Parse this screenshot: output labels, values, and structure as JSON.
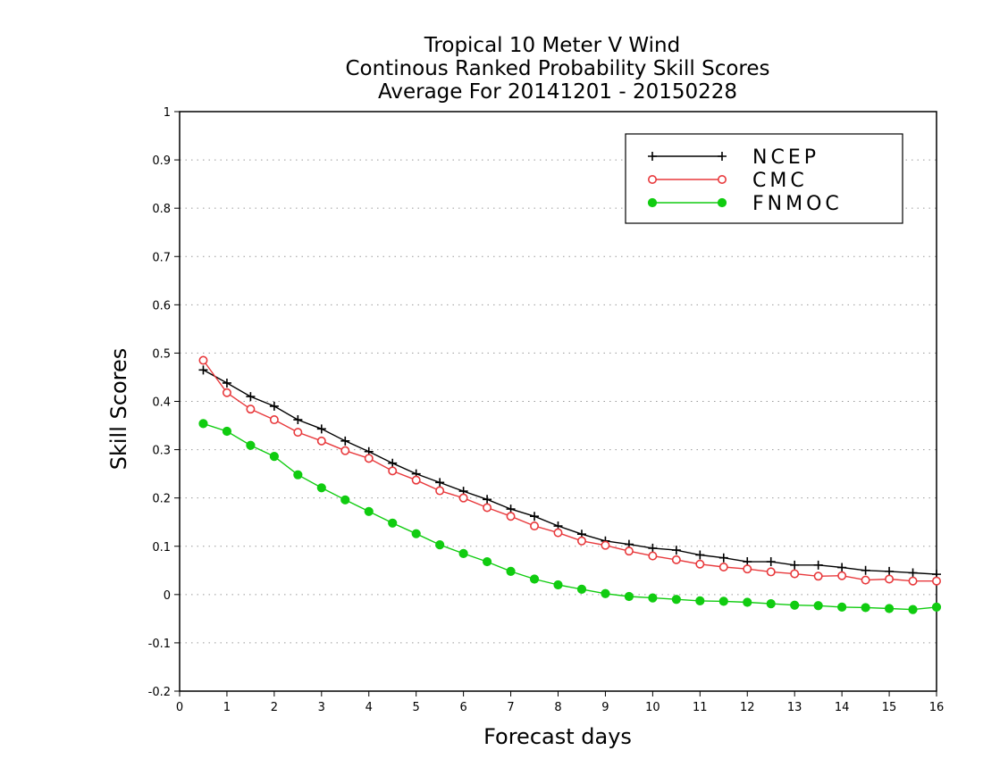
{
  "chart_data": {
    "type": "line",
    "title_lines": [
      "Tropical 10 Meter V Wind",
      "Continous Ranked Probability Skill Scores",
      "Average For 20141201 - 20150228"
    ],
    "xlabel": "Forecast days",
    "ylabel": "Skill Scores",
    "xlim": [
      0,
      16
    ],
    "ylim": [
      -0.2,
      1
    ],
    "x_ticks": [
      "0",
      "1",
      "2",
      "3",
      "4",
      "5",
      "6",
      "7",
      "8",
      "9",
      "10",
      "11",
      "12",
      "13",
      "14",
      "15",
      "16"
    ],
    "y_ticks": [
      "-0.2",
      "-0.1",
      "0",
      "0.1",
      "0.2",
      "0.3",
      "0.4",
      "0.5",
      "0.6",
      "0.7",
      "0.8",
      "0.9",
      "1"
    ],
    "grid": "horizontal dotted",
    "legend_position": "top-right",
    "x": [
      0.5,
      1,
      1.5,
      2,
      2.5,
      3,
      3.5,
      4,
      4.5,
      5,
      5.5,
      6,
      6.5,
      7,
      7.5,
      8,
      8.5,
      9,
      9.5,
      10,
      10.5,
      11,
      11.5,
      12,
      12.5,
      13,
      13.5,
      14,
      14.5,
      15,
      15.5,
      16
    ],
    "series": [
      {
        "name": "NCEP",
        "color": "#000000",
        "marker": "plus",
        "values": [
          0.465,
          0.438,
          0.41,
          0.39,
          0.362,
          0.343,
          0.318,
          0.296,
          0.272,
          0.25,
          0.232,
          0.214,
          0.197,
          0.177,
          0.162,
          0.142,
          0.125,
          0.111,
          0.104,
          0.096,
          0.092,
          0.082,
          0.076,
          0.068,
          0.068,
          0.061,
          0.061,
          0.056,
          0.05,
          0.048,
          0.045,
          0.042
        ]
      },
      {
        "name": "CMC",
        "color": "#e8393c",
        "marker": "open-circle",
        "values": [
          0.485,
          0.418,
          0.384,
          0.362,
          0.336,
          0.318,
          0.298,
          0.282,
          0.256,
          0.237,
          0.215,
          0.2,
          0.18,
          0.162,
          0.142,
          0.128,
          0.111,
          0.102,
          0.09,
          0.08,
          0.072,
          0.063,
          0.057,
          0.053,
          0.047,
          0.043,
          0.038,
          0.039,
          0.03,
          0.032,
          0.028,
          0.028
        ]
      },
      {
        "name": "FNMOC",
        "color": "#10cc10",
        "marker": "filled-circle",
        "values": [
          0.354,
          0.338,
          0.309,
          0.286,
          0.248,
          0.221,
          0.196,
          0.172,
          0.148,
          0.126,
          0.103,
          0.085,
          0.068,
          0.048,
          0.032,
          0.02,
          0.011,
          0.002,
          -0.004,
          -0.007,
          -0.01,
          -0.013,
          -0.014,
          -0.016,
          -0.019,
          -0.022,
          -0.023,
          -0.026,
          -0.027,
          -0.029,
          -0.031,
          -0.026
        ]
      }
    ]
  }
}
